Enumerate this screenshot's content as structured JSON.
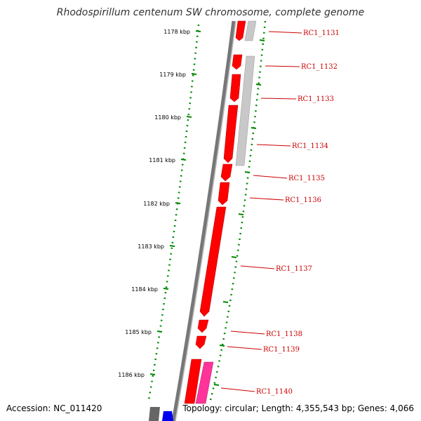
{
  "title": "Rhodospirillum centenum SW chromosome, complete genome",
  "footer": {
    "accession": "Accession: NC_011420",
    "summary": "Topology: circular; Length: 4,355,543 bp; Genes: 4,066"
  },
  "scale_ticks": [
    "1178 kbp",
    "1179 kbp",
    "1180 kbp",
    "1181 kbp",
    "1182 kbp",
    "1183 kbp",
    "1184 kbp",
    "1185 kbp",
    "1186 kbp"
  ],
  "genes": [
    "RC1_1131",
    "RC1_1132",
    "RC1_1133",
    "RC1_1134",
    "RC1_1135",
    "RC1_1136",
    "RC1_1137",
    "RC1_1138",
    "RC1_1139",
    "RC1_1140"
  ],
  "colors": {
    "backbone": "#777777",
    "gene": "#ff0000",
    "gene_gray": "#bbbbbb",
    "gene_pink": "#ff3399",
    "gene_blue": "#0000ee",
    "scale": "#008800",
    "label": "#cc0000"
  }
}
